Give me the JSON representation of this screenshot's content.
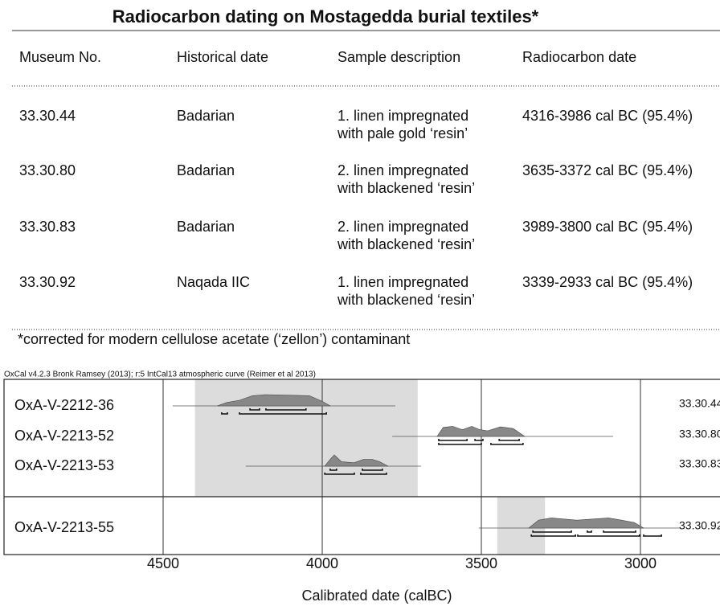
{
  "title": "Radiocarbon dating on Mostagedda burial textiles*",
  "table": {
    "header": [
      "Museum No.",
      "Historical date",
      "Sample description",
      "Radiocarbon date"
    ],
    "rows": [
      [
        "33.30.44",
        "Badarian",
        [
          "1. linen impregnated",
          "with pale gold ‘resin’"
        ],
        "4316-3986 cal BC (95.4%)"
      ],
      [
        "33.30.80",
        "Badarian",
        [
          "2. linen impregnated",
          "with blackened ‘resin’"
        ],
        "3635-3372 cal BC (95.4%)"
      ],
      [
        "33.30.83",
        "Badarian",
        [
          "2. linen impregnated",
          "with blackened ‘resin’"
        ],
        "3989-3800 cal BC (95.4%)"
      ],
      [
        "33.30.92",
        "Naqada IIC",
        [
          "1. linen impregnated",
          "with blackened ‘resin’"
        ],
        "3339-2933 cal BC (95.4%)"
      ]
    ]
  },
  "footnote": "*corrected for modern cellulose acetate (‘zellon’) contaminant",
  "chart_data": {
    "type": "oxcal",
    "caption": "OxCal v4.2.3 Bronk Ramsey (2013); r:5 IntCal13 atmospheric curve (Reimer et al 2013)",
    "xlabel": "Calibrated date (calBC)",
    "xlim": [
      5000,
      2750
    ],
    "xticks": [
      4500,
      4000,
      3500,
      3000
    ],
    "grid": true,
    "groups": [
      {
        "shade": [
          4400,
          3700
        ],
        "samples": [
          {
            "name": "OxA-V-2212-36",
            "span": [
              4470,
              3770
            ],
            "x": [
              4330,
              4300,
              4260,
              4220,
              4180,
              4100,
              4040,
              4000,
              3975
            ],
            "values": [
              0,
              0.3,
              0.5,
              0.9,
              1,
              0.95,
              0.9,
              0.4,
              0
            ],
            "ranges68": [
              [
                4227,
                4197
              ],
              [
                4177,
                4051
              ]
            ],
            "ranges95": [
              [
                4316,
                4298
              ],
              [
                4260,
                3987
              ]
            ]
          },
          {
            "name": "OxA-V-2213-52",
            "span": [
              3780,
              3086
            ],
            "x": [
              3639,
              3620,
              3590,
              3560,
              3530,
              3505,
              3480,
              3440,
              3400,
              3364
            ],
            "values": [
              0,
              0.8,
              0.9,
              0.6,
              0.9,
              0.6,
              0.5,
              0.85,
              0.7,
              0
            ],
            "ranges68": [
              [
                3634,
                3545
              ],
              [
                3520,
                3495
              ],
              [
                3444,
                3381
              ]
            ],
            "ranges95": [
              [
                3634,
                3500
              ],
              [
                3470,
                3369
              ]
            ]
          },
          {
            "name": "OxA-V-2213-53",
            "span": [
              4240,
              3690
            ],
            "x": [
              3992,
              3975,
              3962,
              3940,
              3900,
              3870,
              3843,
              3820,
              3793
            ],
            "values": [
              0,
              0.6,
              1,
              0.4,
              0.3,
              0.6,
              0.6,
              0.4,
              0
            ],
            "ranges68": [
              [
                3975,
                3955
              ],
              [
                3874,
                3811
              ]
            ],
            "ranges95": [
              [
                3992,
                3899
              ],
              [
                3879,
                3798
              ]
            ]
          }
        ]
      },
      {
        "shade": [
          3450,
          3300
        ],
        "samples": [
          {
            "name": "OxA-V-2213-55",
            "span": [
              3508,
              2876
            ],
            "x": [
              3351,
              3320,
              3280,
              3240,
              3200,
              3150,
              3100,
              3060,
              3020,
              2990
            ],
            "values": [
              0,
              0.7,
              0.9,
              0.8,
              0.7,
              0.8,
              0.9,
              0.7,
              0.5,
              0
            ],
            "ranges68": [
              [
                3338,
                3217
              ],
              [
                3167,
                3154
              ],
              [
                3116,
                3015
              ]
            ],
            "ranges95": [
              [
                3343,
                3204
              ],
              [
                3197,
                3003
              ],
              [
                2990,
                2934
              ]
            ]
          }
        ]
      }
    ]
  }
}
